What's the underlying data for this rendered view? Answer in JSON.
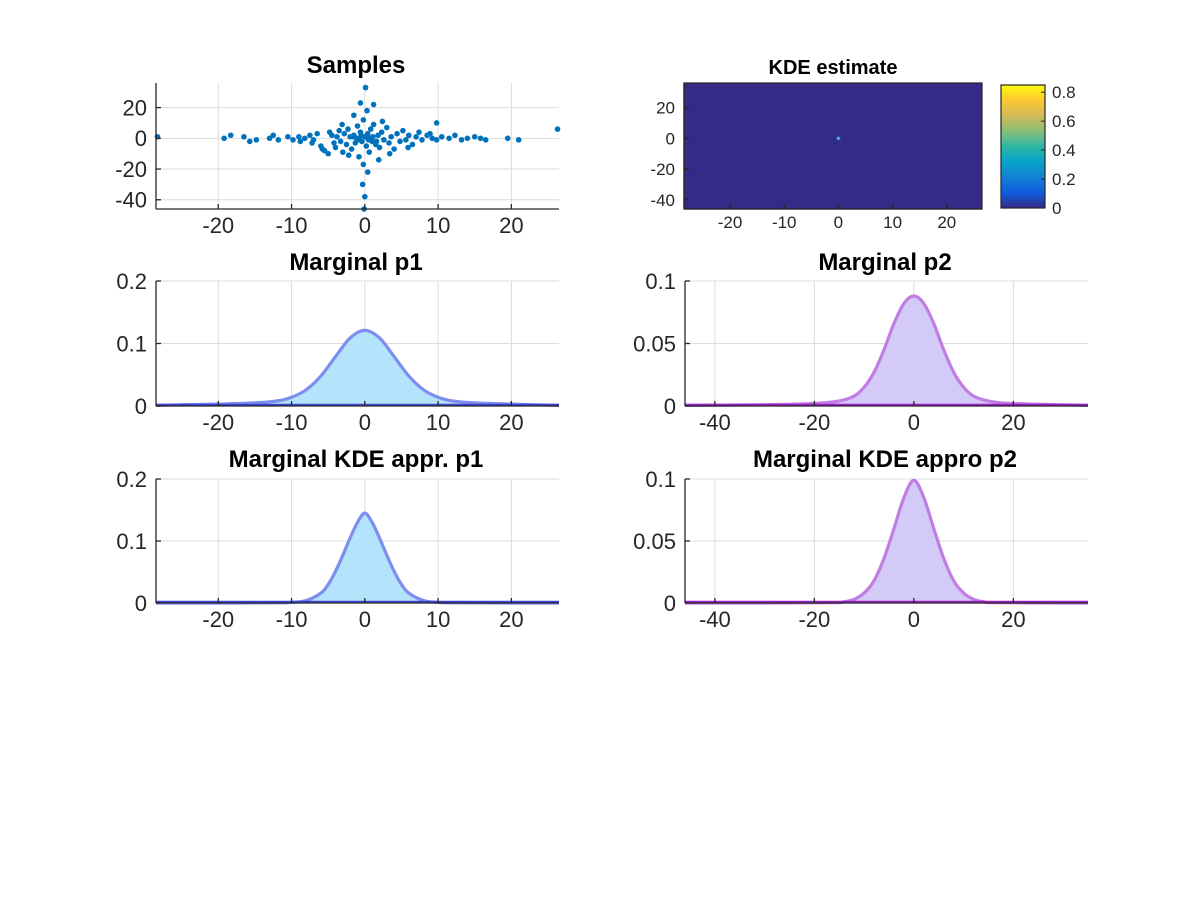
{
  "chart_data": [
    {
      "id": "samples",
      "type": "scatter",
      "title": "Samples",
      "xlim": [
        -28.5,
        26.5
      ],
      "ylim": [
        -46,
        36
      ],
      "xticks": [
        -20,
        -10,
        0,
        10,
        20
      ],
      "yticks": [
        -40,
        -20,
        0,
        20
      ],
      "grid": true,
      "color": "#0072BD",
      "points": [
        [
          -28.3,
          1
        ],
        [
          26.3,
          6
        ],
        [
          -19.2,
          0
        ],
        [
          -18.3,
          2
        ],
        [
          -16.5,
          1
        ],
        [
          -15.7,
          -2
        ],
        [
          -14.8,
          -1
        ],
        [
          -13,
          0
        ],
        [
          -12.5,
          2
        ],
        [
          -11.8,
          -1
        ],
        [
          -10.5,
          1
        ],
        [
          -9.8,
          -1
        ],
        [
          -9,
          1
        ],
        [
          -8.2,
          0
        ],
        [
          -7.5,
          2
        ],
        [
          -7,
          -1
        ],
        [
          -6.5,
          3
        ],
        [
          -6,
          -5
        ],
        [
          -5.5,
          -8
        ],
        [
          -5,
          -10
        ],
        [
          -4.8,
          4
        ],
        [
          -4.5,
          2
        ],
        [
          -4.2,
          -3
        ],
        [
          -4,
          -6
        ],
        [
          -3.8,
          1
        ],
        [
          -3.5,
          5
        ],
        [
          -3.3,
          -2
        ],
        [
          -3,
          -9
        ],
        [
          -2.8,
          3
        ],
        [
          -2.5,
          -4
        ],
        [
          -2.3,
          6
        ],
        [
          -2,
          1
        ],
        [
          -1.8,
          -7
        ],
        [
          -1.5,
          2
        ],
        [
          -1.3,
          -3
        ],
        [
          -1,
          8
        ],
        [
          -0.8,
          -12
        ],
        [
          -0.6,
          4
        ],
        [
          -0.4,
          -2
        ],
        [
          -0.2,
          12
        ],
        [
          0,
          1
        ],
        [
          0.2,
          -5
        ],
        [
          0.4,
          3
        ],
        [
          0.6,
          -9
        ],
        [
          0.8,
          6
        ],
        [
          1,
          -2
        ],
        [
          1.2,
          9
        ],
        [
          1.5,
          -4
        ],
        [
          1.8,
          2
        ],
        [
          2,
          -6
        ],
        [
          2.3,
          4
        ],
        [
          2.6,
          -1
        ],
        [
          3,
          7
        ],
        [
          3.3,
          -3
        ],
        [
          3.6,
          1
        ],
        [
          4,
          -7
        ],
        [
          4.4,
          3
        ],
        [
          4.8,
          -2
        ],
        [
          5.2,
          5
        ],
        [
          5.6,
          -1
        ],
        [
          6,
          2
        ],
        [
          6.5,
          -4
        ],
        [
          7,
          1
        ],
        [
          7.8,
          -1
        ],
        [
          8.5,
          2
        ],
        [
          9.2,
          0
        ],
        [
          9.8,
          -1
        ],
        [
          10.5,
          1
        ],
        [
          11.5,
          0
        ],
        [
          12.3,
          2
        ],
        [
          13.2,
          -1
        ],
        [
          14,
          0
        ],
        [
          15,
          1
        ],
        [
          15.8,
          0
        ],
        [
          16.5,
          -1
        ],
        [
          19.5,
          0
        ],
        [
          21,
          -1
        ],
        [
          0.1,
          33
        ],
        [
          1.2,
          22
        ],
        [
          -0.6,
          23
        ],
        [
          0.3,
          18
        ],
        [
          -0.2,
          -17
        ],
        [
          0.4,
          -22
        ],
        [
          -0.3,
          -30
        ],
        [
          0,
          -38
        ],
        [
          -0.1,
          -46
        ],
        [
          9.8,
          10
        ],
        [
          -1.5,
          15
        ],
        [
          1.9,
          -14
        ],
        [
          -2.2,
          -11
        ],
        [
          2.4,
          11
        ],
        [
          -3.1,
          9
        ],
        [
          3.4,
          -10
        ],
        [
          -5.8,
          -7
        ],
        [
          5.9,
          -6
        ],
        [
          -7.2,
          -3
        ],
        [
          7.4,
          4
        ],
        [
          -8.8,
          -2
        ],
        [
          8.9,
          3
        ],
        [
          -0.5,
          2
        ],
        [
          0.5,
          -1
        ],
        [
          -1.1,
          0
        ],
        [
          1.1,
          1
        ],
        [
          -0.7,
          -1
        ],
        [
          0.7,
          0
        ],
        [
          -1.6,
          1
        ],
        [
          1.6,
          -2
        ]
      ]
    },
    {
      "id": "kde",
      "type": "heatmap",
      "title": "KDE estimate",
      "xlim": [
        -28.5,
        26.5
      ],
      "ylim": [
        -46,
        36
      ],
      "xticks": [
        -20,
        -10,
        0,
        10,
        20
      ],
      "yticks": [
        -40,
        -20,
        0,
        20
      ],
      "background_color": "#352A87",
      "peak": [
        0,
        0
      ],
      "colorbar": {
        "min": 0,
        "max": 0.85,
        "ticks": [
          0,
          0.2,
          0.4,
          0.6,
          0.8
        ],
        "colors": [
          "#352A87",
          "#0F5CDD",
          "#1481D6",
          "#06A4CA",
          "#2EB7A4",
          "#87BF77",
          "#D1BB59",
          "#FEC832",
          "#F9FB0E"
        ]
      }
    },
    {
      "id": "marg-p1",
      "type": "area",
      "title": "Marginal p1",
      "xlim": [
        -28.5,
        26.5
      ],
      "ylim": [
        0,
        0.2
      ],
      "xticks": [
        -20,
        -10,
        0,
        10,
        20
      ],
      "yticks": [
        0,
        0.1,
        0.2
      ],
      "grid": true,
      "fill_color": "#B3E4FB",
      "line_color": "#7E8EEF",
      "base_line_color": "#3B42D4",
      "x": [
        -28.5,
        -25,
        -20,
        -15,
        -12,
        -10,
        -8,
        -6,
        -4,
        -2,
        0,
        2,
        4,
        6,
        8,
        10,
        12,
        15,
        20,
        26.5
      ],
      "values": [
        0.001,
        0.002,
        0.003,
        0.005,
        0.008,
        0.014,
        0.026,
        0.048,
        0.079,
        0.109,
        0.121,
        0.109,
        0.079,
        0.048,
        0.026,
        0.014,
        0.008,
        0.005,
        0.003,
        0.001
      ]
    },
    {
      "id": "marg-p2",
      "type": "area",
      "title": "Marginal p2",
      "xlim": [
        -46,
        35
      ],
      "ylim": [
        0,
        0.1
      ],
      "xticks": [
        -40,
        -20,
        0,
        20
      ],
      "yticks": [
        0,
        0.05,
        0.1
      ],
      "ytick_labels": [
        "0",
        "0.05",
        "0.1"
      ],
      "grid": true,
      "fill_color": "#D3CAF7",
      "line_color": "#C27DE3",
      "base_line_color": "#9B1FC9",
      "x": [
        -46,
        -30,
        -20,
        -15,
        -12,
        -10,
        -8,
        -6,
        -4,
        -2,
        0,
        2,
        4,
        6,
        8,
        10,
        12,
        15,
        20,
        35
      ],
      "values": [
        0.0005,
        0.001,
        0.002,
        0.004,
        0.008,
        0.015,
        0.027,
        0.045,
        0.066,
        0.082,
        0.088,
        0.082,
        0.066,
        0.045,
        0.027,
        0.015,
        0.008,
        0.004,
        0.002,
        0.0005
      ]
    },
    {
      "id": "kde-p1",
      "type": "area",
      "title": "Marginal KDE appr. p1",
      "xlim": [
        -28.5,
        26.5
      ],
      "ylim": [
        0,
        0.2
      ],
      "xticks": [
        -20,
        -10,
        0,
        10,
        20
      ],
      "yticks": [
        0,
        0.1,
        0.2
      ],
      "grid": true,
      "fill_color": "#B3E4FB",
      "line_color": "#7E8EEF",
      "base_line_color": "#3B42D4",
      "x": [
        -28.5,
        -20,
        -12,
        -10,
        -8,
        -6,
        -5,
        -4,
        -3,
        -2,
        -1,
        0,
        1,
        2,
        3,
        4,
        5,
        6,
        8,
        10,
        12,
        20,
        26.5
      ],
      "values": [
        0,
        0,
        0.0003,
        0.001,
        0.004,
        0.016,
        0.03,
        0.051,
        0.077,
        0.105,
        0.13,
        0.145,
        0.13,
        0.105,
        0.077,
        0.051,
        0.03,
        0.016,
        0.004,
        0.001,
        0.0003,
        0,
        0
      ]
    },
    {
      "id": "kde-p2",
      "type": "area",
      "title": "Marginal KDE appro p2",
      "xlim": [
        -46,
        35
      ],
      "ylim": [
        0,
        0.1
      ],
      "xticks": [
        -40,
        -20,
        0,
        20
      ],
      "yticks": [
        0,
        0.05,
        0.1
      ],
      "ytick_labels": [
        "0",
        "0.05",
        "0.1"
      ],
      "grid": true,
      "fill_color": "#D3CAF7",
      "line_color": "#C27DE3",
      "base_line_color": "#9B1FC9",
      "x": [
        -46,
        -30,
        -16,
        -14,
        -12,
        -10,
        -8,
        -6,
        -4,
        -2,
        0,
        2,
        4,
        6,
        8,
        10,
        12,
        14,
        16,
        30,
        35
      ],
      "values": [
        0,
        0,
        0.0003,
        0.001,
        0.003,
        0.008,
        0.018,
        0.036,
        0.06,
        0.085,
        0.099,
        0.085,
        0.06,
        0.036,
        0.018,
        0.008,
        0.003,
        0.001,
        0.0003,
        0,
        0
      ]
    }
  ]
}
